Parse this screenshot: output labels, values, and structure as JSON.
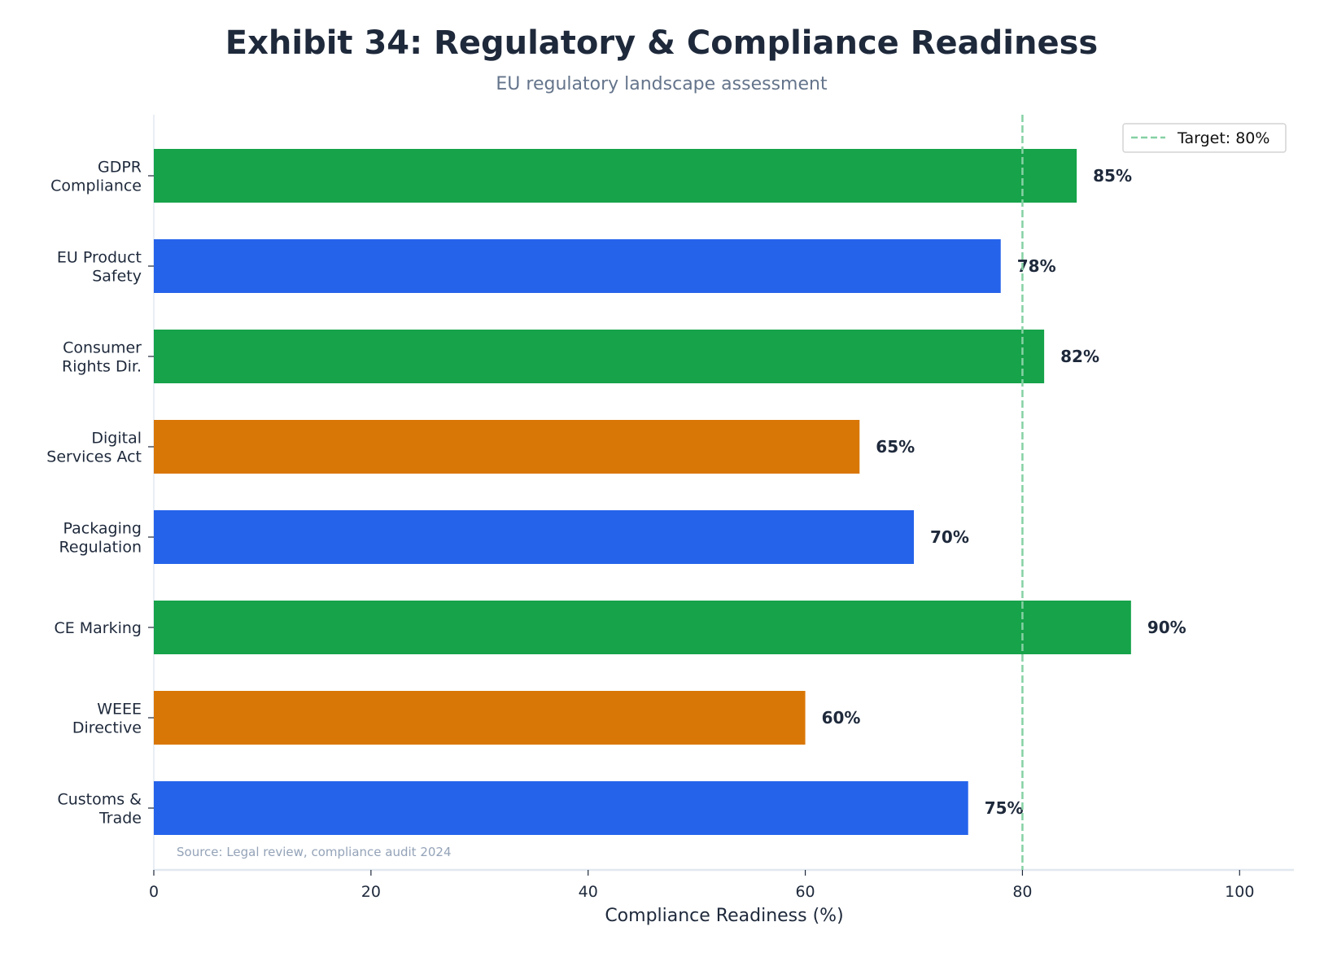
{
  "chart_data": {
    "type": "bar",
    "orientation": "horizontal",
    "title": "Exhibit 34: Regulatory & Compliance Readiness",
    "subtitle": "EU regulatory landscape assessment",
    "xlabel": "Compliance Readiness (%)",
    "ylabel": "",
    "xlim": [
      0,
      105
    ],
    "xticks": [
      "0",
      "20",
      "40",
      "60",
      "80",
      "100"
    ],
    "grid": false,
    "categories": [
      [
        "GDPR",
        "Compliance"
      ],
      [
        "EU Product",
        "Safety"
      ],
      [
        "Consumer",
        "Rights Dir."
      ],
      [
        "Digital",
        "Services Act"
      ],
      [
        "Packaging",
        "Regulation"
      ],
      [
        "CE Marking"
      ],
      [
        "WEEE",
        "Directive"
      ],
      [
        "Customs &",
        "Trade"
      ]
    ],
    "values": [
      85,
      78,
      82,
      65,
      70,
      90,
      60,
      75
    ],
    "data_labels": [
      "85%",
      "78%",
      "82%",
      "65%",
      "70%",
      "90%",
      "60%",
      "75%"
    ],
    "bar_colors": [
      "#16a34a",
      "#2563eb",
      "#16a34a",
      "#d97706",
      "#2563eb",
      "#16a34a",
      "#d97706",
      "#2563eb"
    ],
    "reference_line": {
      "value": 80,
      "label": "Target: 80%",
      "color": "#86d1a4",
      "style": "dashed"
    },
    "legend_position": "top-right",
    "source_note": "Source: Legal review, compliance audit 2024"
  }
}
